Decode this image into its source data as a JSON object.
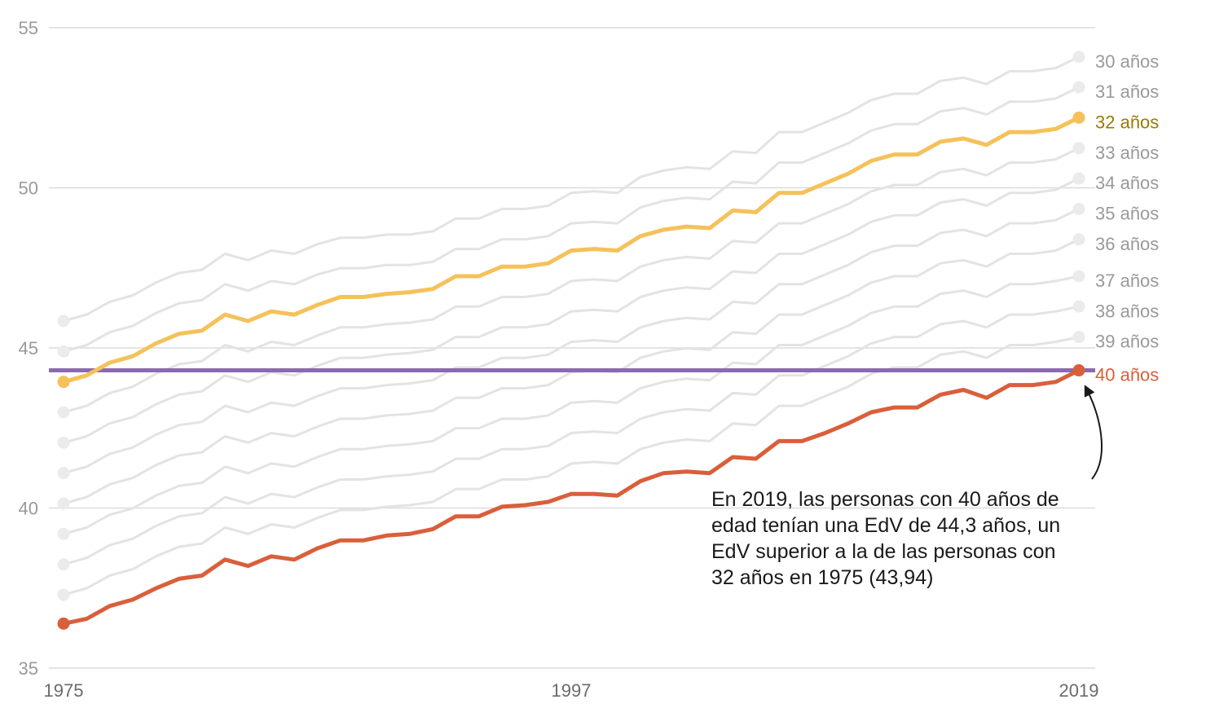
{
  "chart_data": {
    "type": "line",
    "title": "",
    "xlabel": "",
    "ylabel": "",
    "xlim": [
      1975,
      2019
    ],
    "ylim": [
      35,
      55
    ],
    "yticks": [
      35,
      40,
      45,
      50,
      55
    ],
    "xticks": [
      1975,
      1997,
      2019
    ],
    "grid": "horizontal",
    "legend": "series labels at right end of lines",
    "x": [
      1975,
      1976,
      1977,
      1978,
      1979,
      1980,
      1981,
      1982,
      1983,
      1984,
      1985,
      1986,
      1987,
      1988,
      1989,
      1990,
      1991,
      1992,
      1993,
      1994,
      1995,
      1996,
      1997,
      1998,
      1999,
      2000,
      2001,
      2002,
      2003,
      2004,
      2005,
      2006,
      2007,
      2008,
      2009,
      2010,
      2011,
      2012,
      2013,
      2014,
      2015,
      2016,
      2017,
      2018,
      2019
    ],
    "series": [
      {
        "name": "30 años",
        "color": "#e3e3e3",
        "highlight": false,
        "values": [
          45.84,
          46.04,
          46.44,
          46.64,
          47.04,
          47.34,
          47.44,
          47.94,
          47.74,
          48.04,
          47.94,
          48.24,
          48.44,
          48.44,
          48.54,
          48.54,
          48.64,
          49.04,
          49.04,
          49.34,
          49.34,
          49.44,
          49.84,
          49.89,
          49.84,
          50.34,
          50.54,
          50.64,
          50.59,
          51.14,
          51.09,
          51.74,
          51.74,
          52.04,
          52.34,
          52.74,
          52.94,
          52.94,
          53.34,
          53.44,
          53.24,
          53.64,
          53.64,
          53.74,
          54.09
        ]
      },
      {
        "name": "31 años",
        "color": "#e3e3e3",
        "highlight": false,
        "values": [
          44.89,
          45.09,
          45.49,
          45.69,
          46.09,
          46.39,
          46.49,
          46.99,
          46.79,
          47.09,
          46.99,
          47.29,
          47.49,
          47.49,
          47.59,
          47.59,
          47.69,
          48.09,
          48.09,
          48.39,
          48.39,
          48.49,
          48.89,
          48.94,
          48.89,
          49.39,
          49.59,
          49.69,
          49.64,
          50.19,
          50.14,
          50.79,
          50.79,
          51.09,
          51.39,
          51.79,
          51.99,
          51.99,
          52.39,
          52.49,
          52.29,
          52.69,
          52.69,
          52.79,
          53.14
        ]
      },
      {
        "name": "32 años",
        "color": "#f5c15a",
        "highlight": true,
        "values": [
          43.94,
          44.14,
          44.54,
          44.74,
          45.14,
          45.44,
          45.54,
          46.04,
          45.84,
          46.14,
          46.04,
          46.34,
          46.59,
          46.59,
          46.69,
          46.74,
          46.84,
          47.24,
          47.24,
          47.54,
          47.54,
          47.64,
          48.04,
          48.09,
          48.04,
          48.49,
          48.69,
          48.79,
          48.74,
          49.29,
          49.24,
          49.84,
          49.84,
          50.14,
          50.44,
          50.84,
          51.04,
          51.04,
          51.44,
          51.54,
          51.34,
          51.74,
          51.74,
          51.84,
          52.19
        ]
      },
      {
        "name": "33 años",
        "color": "#e3e3e3",
        "highlight": false,
        "values": [
          42.99,
          43.19,
          43.59,
          43.79,
          44.19,
          44.49,
          44.59,
          45.09,
          44.89,
          45.19,
          45.09,
          45.39,
          45.64,
          45.64,
          45.74,
          45.79,
          45.89,
          46.29,
          46.29,
          46.59,
          46.59,
          46.69,
          47.09,
          47.14,
          47.09,
          47.54,
          47.74,
          47.84,
          47.79,
          48.34,
          48.29,
          48.89,
          48.89,
          49.19,
          49.49,
          49.89,
          50.09,
          50.09,
          50.49,
          50.59,
          50.39,
          50.79,
          50.79,
          50.89,
          51.24
        ]
      },
      {
        "name": "34 años",
        "color": "#e3e3e3",
        "highlight": false,
        "values": [
          42.04,
          42.24,
          42.64,
          42.84,
          43.24,
          43.54,
          43.64,
          44.14,
          43.94,
          44.24,
          44.14,
          44.44,
          44.69,
          44.69,
          44.79,
          44.84,
          44.94,
          45.34,
          45.34,
          45.64,
          45.64,
          45.74,
          46.14,
          46.19,
          46.14,
          46.59,
          46.79,
          46.89,
          46.84,
          47.39,
          47.34,
          47.94,
          47.94,
          48.24,
          48.54,
          48.94,
          49.14,
          49.14,
          49.54,
          49.64,
          49.44,
          49.84,
          49.84,
          49.94,
          50.29
        ]
      },
      {
        "name": "35 años",
        "color": "#e3e3e3",
        "highlight": false,
        "values": [
          41.09,
          41.29,
          41.69,
          41.89,
          42.29,
          42.59,
          42.69,
          43.19,
          42.99,
          43.29,
          43.19,
          43.49,
          43.74,
          43.74,
          43.84,
          43.89,
          43.99,
          44.39,
          44.39,
          44.69,
          44.69,
          44.79,
          45.19,
          45.24,
          45.19,
          45.64,
          45.84,
          45.94,
          45.89,
          46.44,
          46.39,
          46.99,
          46.99,
          47.29,
          47.59,
          47.99,
          48.19,
          48.19,
          48.59,
          48.69,
          48.49,
          48.89,
          48.89,
          48.99,
          49.34
        ]
      },
      {
        "name": "36 años",
        "color": "#e3e3e3",
        "highlight": false,
        "values": [
          40.14,
          40.34,
          40.74,
          40.94,
          41.34,
          41.64,
          41.74,
          42.24,
          42.04,
          42.34,
          42.24,
          42.54,
          42.79,
          42.79,
          42.89,
          42.94,
          43.04,
          43.44,
          43.44,
          43.74,
          43.74,
          43.84,
          44.24,
          44.29,
          44.24,
          44.69,
          44.89,
          44.99,
          44.94,
          45.49,
          45.44,
          46.04,
          46.04,
          46.34,
          46.64,
          47.04,
          47.24,
          47.24,
          47.64,
          47.74,
          47.54,
          47.94,
          47.94,
          48.04,
          48.39
        ]
      },
      {
        "name": "37 años",
        "color": "#e3e3e3",
        "highlight": false,
        "values": [
          39.19,
          39.39,
          39.79,
          39.99,
          40.39,
          40.69,
          40.79,
          41.29,
          41.09,
          41.39,
          41.29,
          41.59,
          41.84,
          41.84,
          41.94,
          41.99,
          42.09,
          42.49,
          42.49,
          42.79,
          42.79,
          42.89,
          43.29,
          43.34,
          43.29,
          43.74,
          43.94,
          44.04,
          43.99,
          44.54,
          44.49,
          45.09,
          45.09,
          45.39,
          45.69,
          46.09,
          46.29,
          46.29,
          46.69,
          46.79,
          46.59,
          46.99,
          46.99,
          47.09,
          47.24
        ]
      },
      {
        "name": "38 años",
        "color": "#e3e3e3",
        "highlight": false,
        "values": [
          38.24,
          38.44,
          38.84,
          39.04,
          39.44,
          39.74,
          39.84,
          40.34,
          40.14,
          40.44,
          40.34,
          40.64,
          40.89,
          40.89,
          40.99,
          41.04,
          41.14,
          41.54,
          41.54,
          41.84,
          41.84,
          41.94,
          42.34,
          42.39,
          42.34,
          42.79,
          42.99,
          43.09,
          43.04,
          43.59,
          43.54,
          44.14,
          44.14,
          44.44,
          44.74,
          45.14,
          45.34,
          45.34,
          45.74,
          45.84,
          45.64,
          46.04,
          46.04,
          46.14,
          46.29
        ]
      },
      {
        "name": "39 años",
        "color": "#e3e3e3",
        "highlight": false,
        "values": [
          37.29,
          37.49,
          37.89,
          38.09,
          38.49,
          38.79,
          38.89,
          39.39,
          39.19,
          39.49,
          39.39,
          39.69,
          39.94,
          39.94,
          40.04,
          40.09,
          40.19,
          40.59,
          40.59,
          40.89,
          40.89,
          40.99,
          41.39,
          41.44,
          41.39,
          41.84,
          42.04,
          42.14,
          42.09,
          42.64,
          42.59,
          43.19,
          43.19,
          43.49,
          43.79,
          44.19,
          44.39,
          44.39,
          44.79,
          44.89,
          44.69,
          45.09,
          45.09,
          45.19,
          45.34
        ]
      },
      {
        "name": "40 años",
        "color": "#d95f3b",
        "highlight": true,
        "values": [
          36.39,
          36.54,
          36.94,
          37.14,
          37.49,
          37.79,
          37.89,
          38.39,
          38.19,
          38.49,
          38.39,
          38.74,
          38.99,
          38.99,
          39.14,
          39.19,
          39.34,
          39.74,
          39.74,
          40.04,
          40.09,
          40.19,
          40.44,
          40.44,
          40.39,
          40.84,
          41.09,
          41.14,
          41.09,
          41.59,
          41.54,
          42.09,
          42.09,
          42.34,
          42.64,
          42.99,
          43.14,
          43.14,
          43.54,
          43.69,
          43.44,
          43.84,
          43.84,
          43.94,
          44.3
        ]
      }
    ],
    "reference_line": {
      "value": 44.3,
      "color": "#8b6aae"
    },
    "annotation": {
      "lines": [
        "En 2019, las personas con 40 años de",
        "edad tenían una EdV de 44,3 años, un",
        "EdV superior a la de las personas con",
        "32 años en 1975 (43,94)"
      ],
      "target_series": "40 años",
      "target_x": 2019
    },
    "label_colors": {
      "muted": "#9a9a9a",
      "highlight_yellow": "#9a7a00",
      "highlight_red": "#d95f3b",
      "muted_dot": "#ebebeb"
    }
  }
}
